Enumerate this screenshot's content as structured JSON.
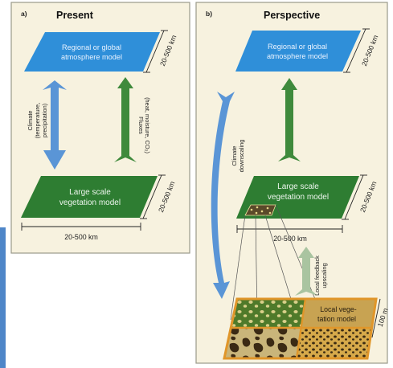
{
  "panel_a": {
    "letter": "a)",
    "title": "Present",
    "atmosphere_label": [
      "Regional or global",
      "atmosphere model"
    ],
    "vegetation_label": [
      "Large scale",
      "vegetation model"
    ],
    "climate_label": [
      "Climate",
      "(temperature,",
      "precipitation)"
    ],
    "fluxes_label": [
      "Fluxes",
      "(heat, moisture, CO₂)"
    ],
    "dim_top": "20-500 km",
    "dim_bottom_right": "20-500 km",
    "dim_bottom": "20-500 km"
  },
  "panel_b": {
    "letter": "b)",
    "title": "Perspective",
    "atmosphere_label": [
      "Regional or global",
      "atmosphere model"
    ],
    "vegetation_label": [
      "Large scale",
      "vegetation model"
    ],
    "downscaling_label": [
      "Climate",
      "downscaling"
    ],
    "upscaling_label": [
      "Local feedback",
      "upscaling"
    ],
    "local_label": [
      "Local vege-",
      "tation model"
    ],
    "dim_top": "20-500 km",
    "dim_right": "20-500 km",
    "dim_bottom": "20-500 km",
    "dim_local": "100 m"
  },
  "colors": {
    "panel_bg": "#f7f2df",
    "panel_border": "#9a9a8a",
    "blue": "#2f8fd9",
    "green": "#2e7d32",
    "arrow_blue": "#5a95d6",
    "arrow_green": "#3f8a3c",
    "arrow_green_light": "#a9c4a0",
    "orange": "#e0962a"
  }
}
